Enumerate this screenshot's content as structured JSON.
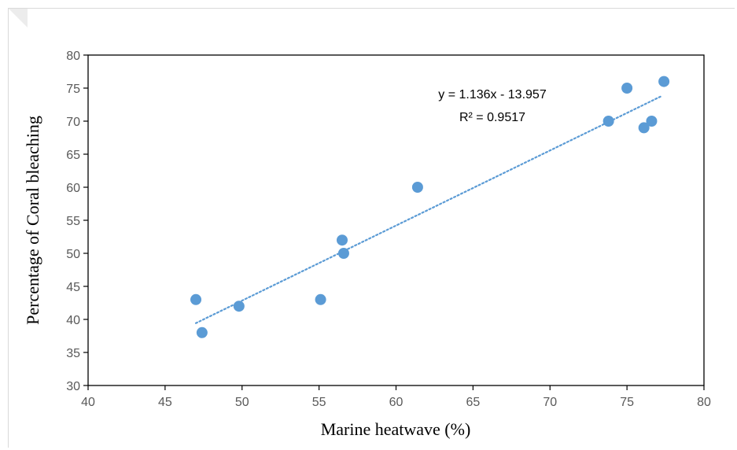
{
  "chart_data": {
    "type": "scatter",
    "xlabel": "Marine heatwave (%)",
    "ylabel": "Percentage of Coral bleaching",
    "xlim": [
      40,
      80
    ],
    "ylim": [
      30,
      80
    ],
    "xticks": [
      "40",
      "45",
      "50",
      "55",
      "60",
      "65",
      "70",
      "75",
      "80"
    ],
    "yticks": [
      "30",
      "35",
      "40",
      "45",
      "50",
      "55",
      "60",
      "65",
      "70",
      "75",
      "80"
    ],
    "grid": false,
    "series": [
      {
        "color": "#5b9bd5",
        "points": [
          {
            "x": 47.0,
            "y": 43
          },
          {
            "x": 47.4,
            "y": 38
          },
          {
            "x": 49.8,
            "y": 42
          },
          {
            "x": 55.1,
            "y": 43
          },
          {
            "x": 56.5,
            "y": 52
          },
          {
            "x": 56.6,
            "y": 50
          },
          {
            "x": 61.4,
            "y": 60
          },
          {
            "x": 73.8,
            "y": 70
          },
          {
            "x": 75.0,
            "y": 75
          },
          {
            "x": 76.1,
            "y": 69
          },
          {
            "x": 76.6,
            "y": 70
          },
          {
            "x": 77.4,
            "y": 76
          }
        ]
      }
    ],
    "trendline": {
      "type": "linear",
      "slope": 1.136,
      "intercept": -13.957,
      "x_range": [
        47.0,
        77.2
      ],
      "style": "dotted",
      "color": "#5b9bd5",
      "equation_label": "y = 1.136x - 13.957",
      "r2_label": "R² = 0.9517"
    }
  }
}
